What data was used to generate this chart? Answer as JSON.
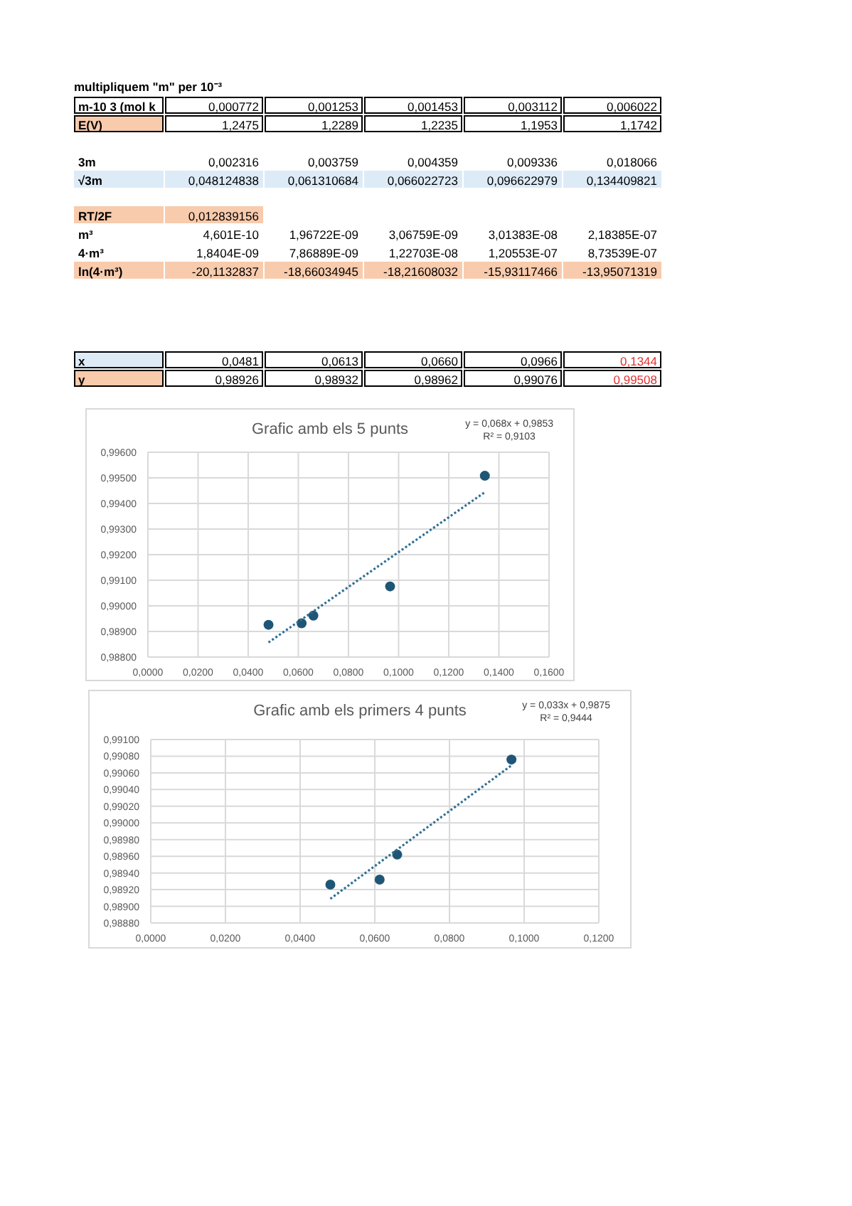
{
  "chart_data": [
    {
      "type": "other",
      "title": "multipliquem \"m\" per 10⁻³",
      "annotations": [
        "m-10 3 (mol k",
        "0,000772",
        "0,001253",
        "0,001453",
        "0,003112",
        "0,006022",
        "E(V)",
        "1,2475",
        "1,2289",
        "1,2235",
        "1,1953",
        "1,1742",
        "3m",
        "0,002316",
        "0,003759",
        "0,004359",
        "0,009336",
        "0,018066",
        "√3m",
        "0,048124838",
        "0,061310684",
        "0,066022723",
        "0,096622979",
        "0,134409821",
        "RT/2F",
        "0,012839156",
        "m³",
        "4,601E-10",
        "1,96722E-09",
        "3,06759E-09",
        "3,01383E-08",
        "2,18385E-07",
        "4·m³",
        "1,8404E-09",
        "7,86889E-09",
        "1,22703E-08",
        "1,20553E-07",
        "8,73539E-07",
        "ln(4·m³)",
        "-20,1132837",
        "-18,66034945",
        "-18,21608032",
        "-15,93117466",
        "-13,95071319",
        "x",
        "0,0481",
        "0,0613",
        "0,0660",
        "0,0966",
        "0,1344",
        "y",
        "0,98926",
        "0,98932",
        "0,98962",
        "0,99076",
        "0,99508"
      ]
    },
    {
      "type": "scatter",
      "title": "Grafic amb els 5 punts",
      "annotations": [
        "y = 0,068x + 0,9853",
        "R² = 0,9103"
      ],
      "grid": true,
      "x": [
        0.0481,
        0.0613,
        0.066,
        0.0966,
        0.1344
      ],
      "series": [
        {
          "type": "scatter",
          "color": "#1f5676",
          "marker": "circle",
          "values": [
            0.98926,
            0.98932,
            0.98962,
            0.99076,
            0.99508
          ]
        },
        {
          "type": "line",
          "color": "#2e6f95",
          "marker": "none",
          "line_style": "dotted",
          "x": [
            0.0481,
            0.1344
          ],
          "values": [
            0.98857,
            0.99444
          ]
        }
      ],
      "xlim": [
        0,
        0.16
      ],
      "xticks": [
        {
          "value": 0,
          "label": "0,0000"
        },
        {
          "value": 0.02,
          "label": "0,0200"
        },
        {
          "value": 0.04,
          "label": "0,0400"
        },
        {
          "value": 0.06,
          "label": "0,0600"
        },
        {
          "value": 0.08,
          "label": "0,0800"
        },
        {
          "value": 0.1,
          "label": "0,1000"
        },
        {
          "value": 0.12,
          "label": "0,1200"
        },
        {
          "value": 0.14,
          "label": "0,1400"
        },
        {
          "value": 0.16,
          "label": "0,1600"
        }
      ],
      "ylim": [
        0.988,
        0.996
      ],
      "yticks": [
        {
          "value": 0.988,
          "label": "0,98800"
        },
        {
          "value": 0.989,
          "label": "0,98900"
        },
        {
          "value": 0.99,
          "label": "0,99000"
        },
        {
          "value": 0.991,
          "label": "0,99100"
        },
        {
          "value": 0.992,
          "label": "0,99200"
        },
        {
          "value": 0.993,
          "label": "0,99300"
        },
        {
          "value": 0.994,
          "label": "0,99400"
        },
        {
          "value": 0.995,
          "label": "0,99500"
        },
        {
          "value": 0.996,
          "label": "0,99600"
        }
      ]
    },
    {
      "type": "scatter",
      "title": "Grafic amb els primers 4 punts",
      "annotations": [
        "y = 0,033x + 0,9875",
        "R² = 0,9444"
      ],
      "grid": true,
      "x": [
        0.0481,
        0.0613,
        0.066,
        0.0966
      ],
      "series": [
        {
          "type": "scatter",
          "color": "#1f5676",
          "marker": "circle",
          "values": [
            0.98926,
            0.98932,
            0.98962,
            0.99076
          ]
        },
        {
          "type": "line",
          "color": "#2e6f95",
          "marker": "none",
          "line_style": "dotted",
          "x": [
            0.0481,
            0.0966
          ],
          "values": [
            0.98909,
            0.99069
          ]
        }
      ],
      "xlim": [
        0,
        0.12
      ],
      "xticks": [
        {
          "value": 0,
          "label": "0,0000"
        },
        {
          "value": 0.02,
          "label": "0,0200"
        },
        {
          "value": 0.04,
          "label": "0,0400"
        },
        {
          "value": 0.06,
          "label": "0,0600"
        },
        {
          "value": 0.08,
          "label": "0,0800"
        },
        {
          "value": 0.1,
          "label": "0,1000"
        },
        {
          "value": 0.12,
          "label": "0,1200"
        }
      ],
      "ylim": [
        0.9888,
        0.991
      ],
      "yticks": [
        {
          "value": 0.9888,
          "label": "0,98880"
        },
        {
          "value": 0.989,
          "label": "0,98900"
        },
        {
          "value": 0.9892,
          "label": "0,98920"
        },
        {
          "value": 0.9894,
          "label": "0,98940"
        },
        {
          "value": 0.9896,
          "label": "0,98960"
        },
        {
          "value": 0.9898,
          "label": "0,98980"
        },
        {
          "value": 0.99,
          "label": "0,99000"
        },
        {
          "value": 0.9902,
          "label": "0,99020"
        },
        {
          "value": 0.9904,
          "label": "0,99040"
        },
        {
          "value": 0.9906,
          "label": "0,99060"
        },
        {
          "value": 0.9908,
          "label": "0,99080"
        },
        {
          "value": 0.991,
          "label": "0,99100"
        }
      ]
    }
  ]
}
